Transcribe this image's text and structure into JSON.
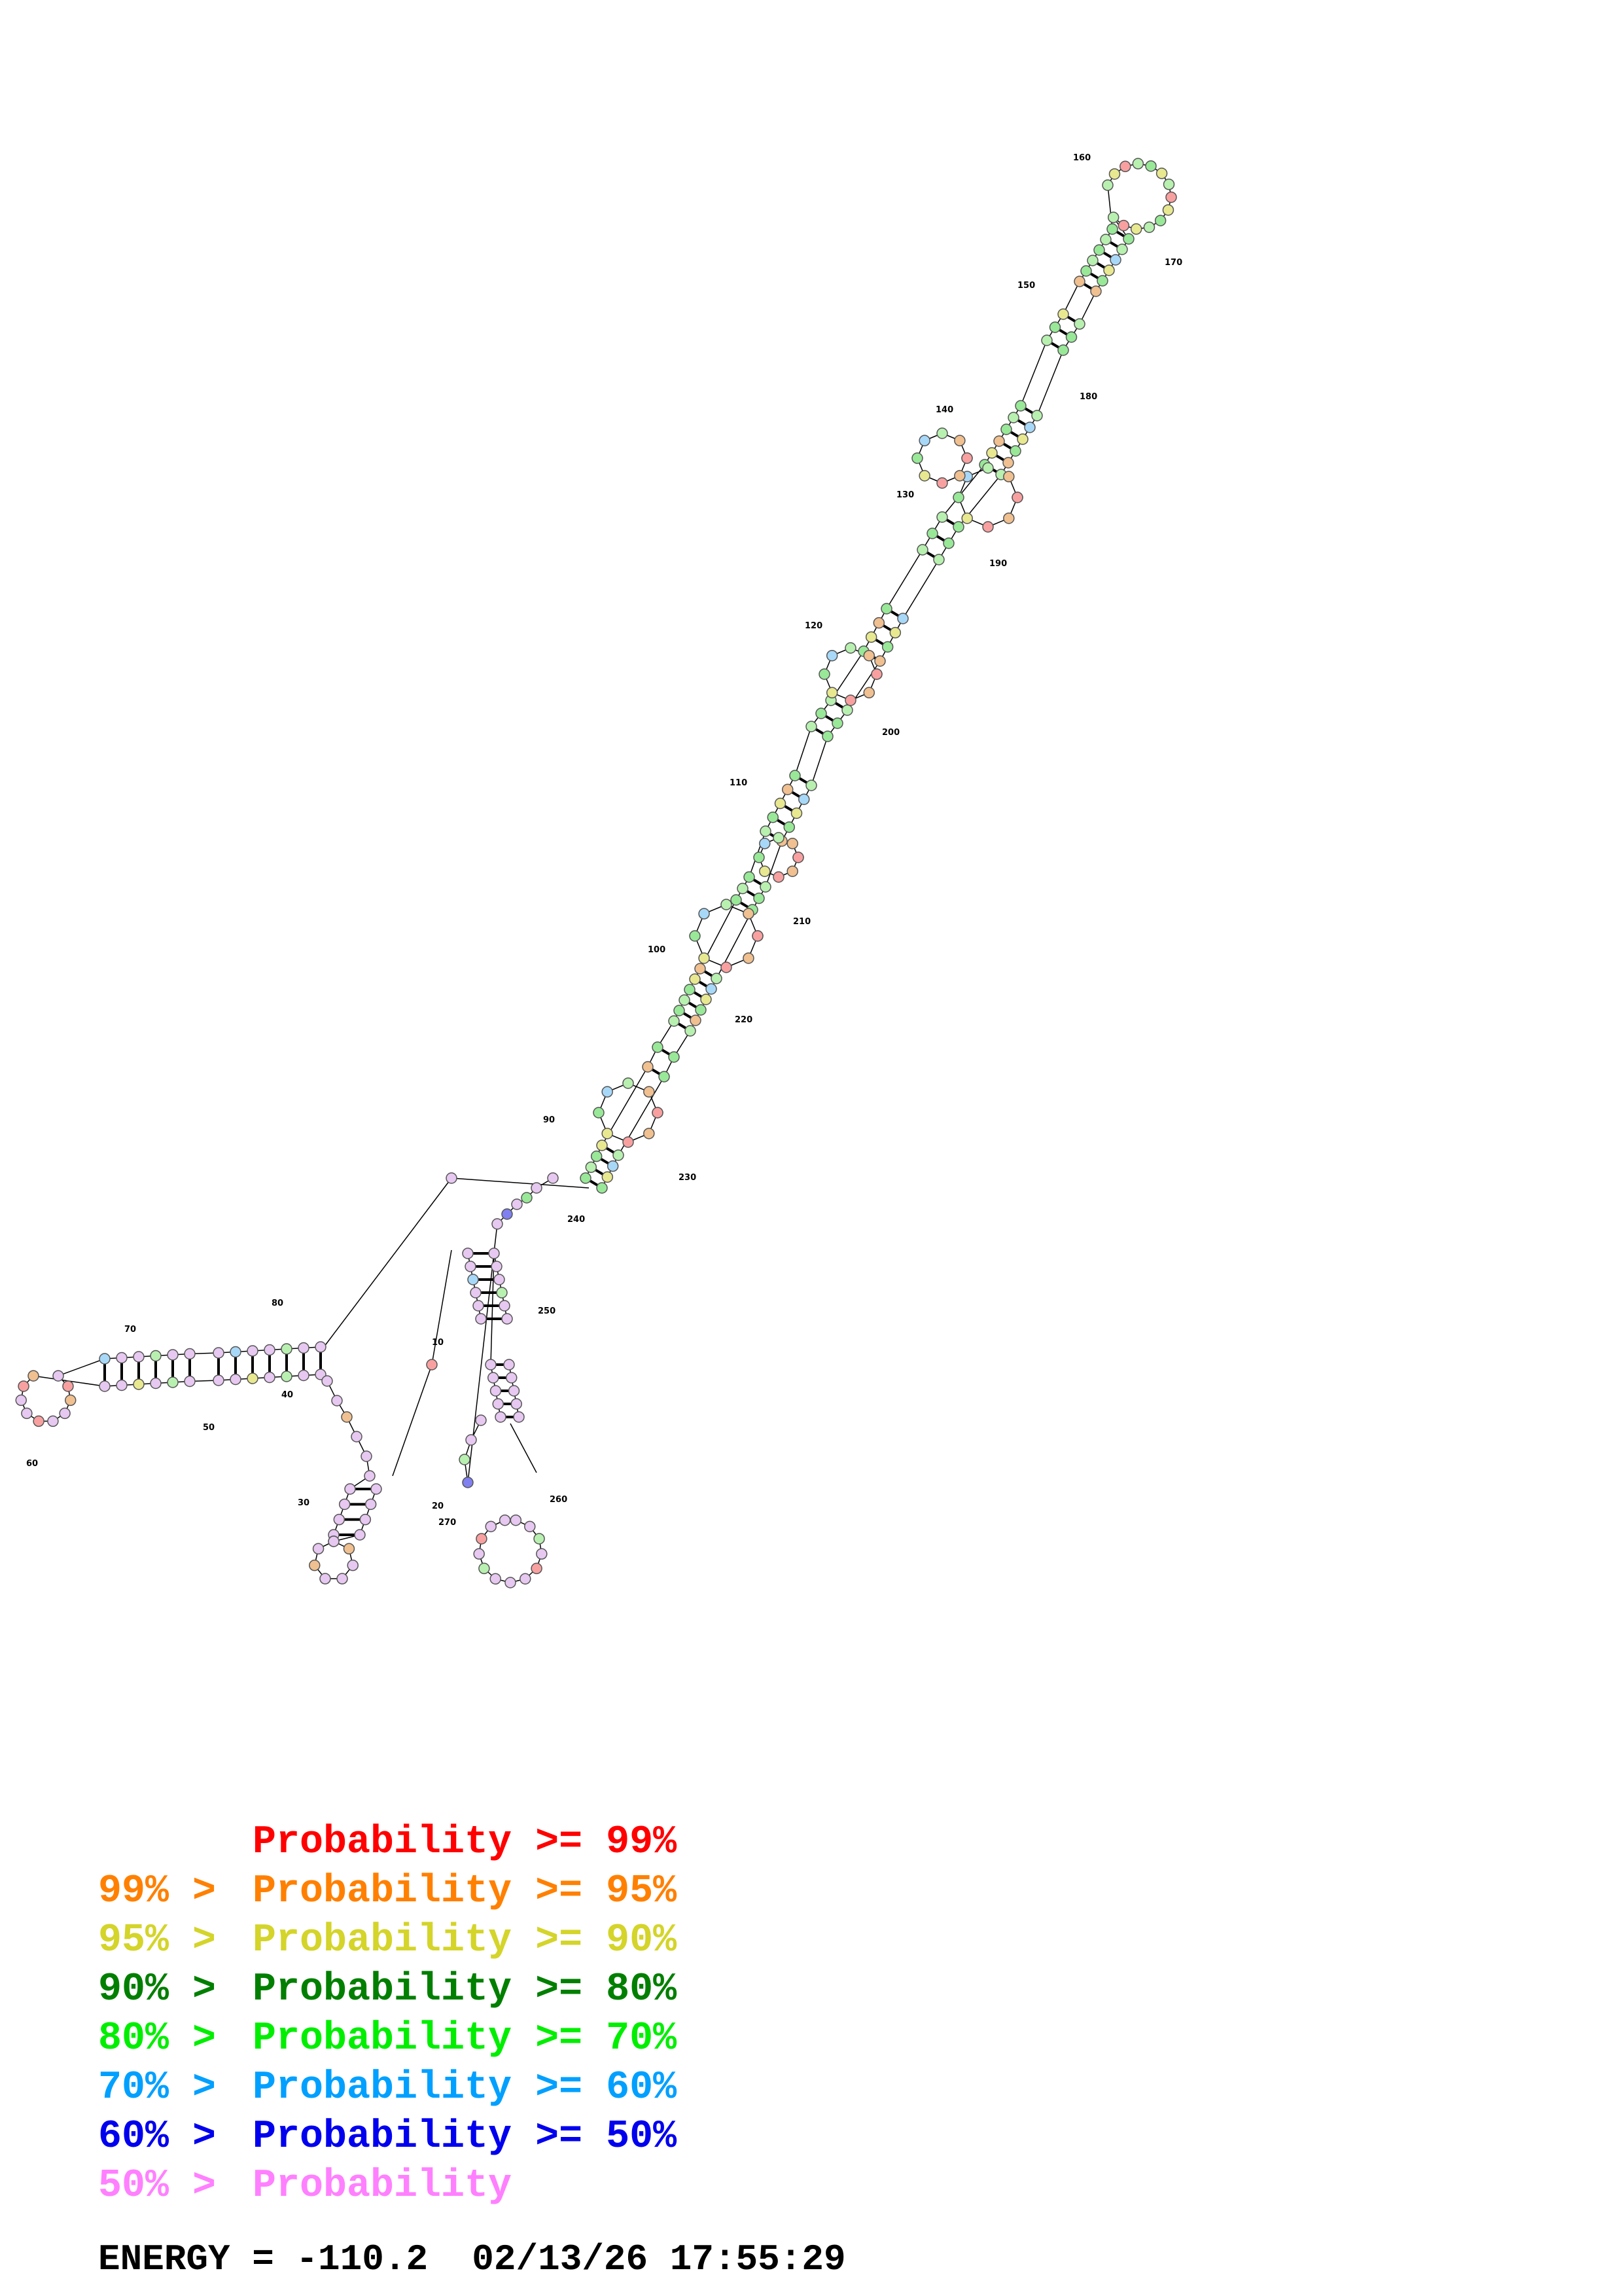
{
  "legend": [
    {
      "prefix": "",
      "text": "Probability >= 99%",
      "color": "#ff0000"
    },
    {
      "prefix": "99% > ",
      "text": "Probability >= 95%",
      "color": "#ff8000"
    },
    {
      "prefix": "95% > ",
      "text": "Probability >= 90%",
      "color": "#d4d42a"
    },
    {
      "prefix": "90% > ",
      "text": "Probability >= 80%",
      "color": "#007f00"
    },
    {
      "prefix": "80% > ",
      "text": "Probability >= 70%",
      "color": "#00ee00"
    },
    {
      "prefix": "70% > ",
      "text": "Probability >= 60%",
      "color": "#00a0ff"
    },
    {
      "prefix": "60% > ",
      "text": "Probability >= 50%",
      "color": "#0000ee"
    },
    {
      "prefix": "50% > ",
      "text": "Probability",
      "color": "#ff80ff"
    }
  ],
  "energy_line": "ENERGY = -110.2  02/13/26 17:55:29",
  "position_labels": [
    "10",
    "20",
    "30",
    "40",
    "50",
    "60",
    "70",
    "80",
    "90",
    "100",
    "110",
    "120",
    "130",
    "140",
    "150",
    "160",
    "170",
    "180",
    "190",
    "200",
    "210",
    "220",
    "230",
    "240",
    "250",
    "260",
    "270"
  ],
  "node_fill_colors": {
    "pink": "#e6c8f0",
    "light_green": "#b8f0b0",
    "green": "#98e898",
    "yellow": "#e8e890",
    "orange": "#f0c090",
    "blue": "#a8d8f8",
    "red": "#f8a0a0",
    "dark_blue": "#8080f0"
  }
}
